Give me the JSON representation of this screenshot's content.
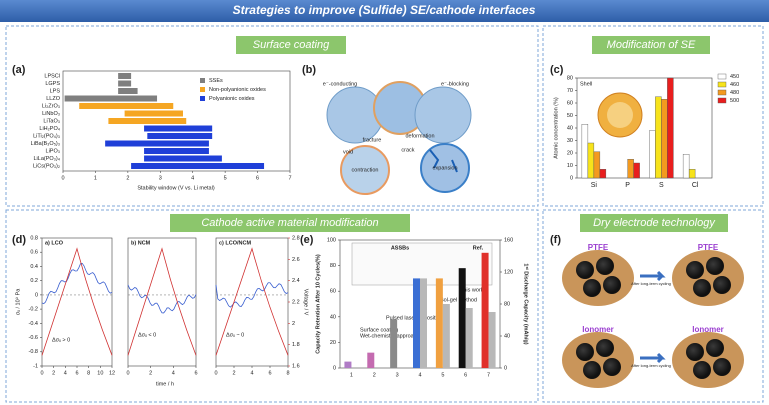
{
  "header": {
    "title": "Strategies to improve (Sulfide) SE/cathode interfaces"
  },
  "sections": {
    "surface_coating": "Surface coating",
    "modification_se": "Modification of SE",
    "cathode": "Cathode active material modification",
    "dry": "Dry electrode technology"
  },
  "panels": {
    "a": {
      "label": "(a)",
      "chart_data": {
        "type": "range-bar",
        "x_label": "Stability window (V vs. Li metal)",
        "categories": [
          "LPSCl",
          "LGPS",
          "LPS",
          "LLZO",
          "Li₂ZrO₃",
          "LiNbO₃",
          "LiTaO₃",
          "LiH₂PO₄",
          "LiTi₂(PO₄)₃",
          "LiBa(B₃O₅)₃",
          "LiPO₃",
          "LiLa(PO₃)₄",
          "LiCs(PO₃)₂"
        ],
        "xlim": [
          0,
          7
        ],
        "xticks": [
          0,
          1,
          2,
          3,
          4,
          5,
          6,
          7
        ],
        "series": [
          {
            "name": "SSEs",
            "color": "#7f7f7f",
            "ranges": [
              [
                1.7,
                2.1
              ],
              [
                1.7,
                2.1
              ],
              [
                1.7,
                2.3
              ],
              [
                0.05,
                2.9
              ],
              null,
              null,
              null,
              null,
              null,
              null,
              null,
              null,
              null
            ]
          },
          {
            "name": "Non-polyanionic oxides",
            "color": "#f5a623",
            "ranges": [
              null,
              null,
              null,
              null,
              [
                0.5,
                3.4
              ],
              [
                1.9,
                3.7
              ],
              [
                1.4,
                3.8
              ],
              null,
              null,
              null,
              null,
              null,
              null
            ]
          },
          {
            "name": "Polyanionic oxides",
            "color": "#1f3fd8",
            "ranges": [
              null,
              null,
              null,
              null,
              null,
              null,
              null,
              [
                2.5,
                4.6
              ],
              [
                2.6,
                4.6
              ],
              [
                1.3,
                4.5
              ],
              [
                2.5,
                4.5
              ],
              [
                2.5,
                4.9
              ],
              [
                2.1,
                6.2
              ]
            ]
          }
        ]
      }
    },
    "b": {
      "label": "(b)",
      "texts": [
        "e⁻-conducting",
        "e⁻-blocking",
        "fracture",
        "deformation",
        "void",
        "crack",
        "contraction",
        "expansion"
      ]
    },
    "c": {
      "label": "(c)",
      "shell": "Shell",
      "chart_data": {
        "type": "bar",
        "y_label": "Atomic concentration (%)",
        "categories": [
          "Si",
          "P",
          "S",
          "Cl"
        ],
        "ylim": [
          0,
          80
        ],
        "yticks": [
          0,
          10,
          20,
          30,
          40,
          50,
          60,
          70,
          80
        ],
        "series": [
          {
            "name": "450",
            "color": "#ffffff",
            "values": [
              43,
              null,
              38,
              19
            ]
          },
          {
            "name": "460",
            "color": "#f7e31b",
            "values": [
              28,
              null,
              65,
              7
            ]
          },
          {
            "name": "480",
            "color": "#f39a1f",
            "values": [
              21,
              15,
              63,
              null
            ]
          },
          {
            "name": "500",
            "color": "#e81e1e",
            "values": [
              7,
              12,
              80,
              null
            ]
          }
        ]
      }
    },
    "d": {
      "label": "(d)",
      "subtitles": [
        "a) LCO",
        "b) NCM",
        "c) LCO/NCM"
      ],
      "annotations": [
        "Δσₓ > 0",
        "Δσₓ < 0",
        "Δσₓ ~ 0"
      ],
      "chart_data": {
        "type": "line",
        "y_label": "σₓ / 10⁹ Pa",
        "y2_label": "Voltage / V",
        "x_label": "time / h",
        "ylim": [
          -1.0,
          0.8
        ],
        "yticks": [
          0.8,
          0.6,
          0.4,
          0.2,
          0,
          -0.2,
          -0.4,
          -0.6,
          -0.8,
          -1.0
        ],
        "y2lim": [
          1.6,
          2.8
        ],
        "y2ticks": [
          2.8,
          2.6,
          2.4,
          2.2,
          2.0,
          1.8,
          1.6
        ],
        "xticks": [
          [
            0,
            2,
            4,
            6,
            8,
            10,
            12
          ],
          [
            0,
            2,
            4,
            6
          ],
          [
            0,
            2,
            4,
            6,
            8
          ]
        ]
      }
    },
    "e": {
      "label": "(e)",
      "table_header": [
        "ASSBs",
        "Ref."
      ],
      "annotations": [
        "Surface coating",
        "Wet-chemistry approach",
        "Pulsed laser deposition",
        "Sol-gel method",
        "This work"
      ],
      "chart_data": {
        "type": "bar",
        "y_label": "Capacity Retention After 10 Cycles(%)",
        "y2_label": "1ˢᵗ Discharge Capacity (mAh/g)",
        "categories": [
          "1",
          "2",
          "3",
          "4",
          "5",
          "6",
          "7"
        ],
        "ylim": [
          0,
          100
        ],
        "yticks": [
          0,
          20,
          40,
          60,
          80,
          100
        ],
        "y2lim": [
          0,
          160
        ],
        "y2ticks": [
          0,
          40,
          80,
          120,
          160
        ],
        "series": [
          {
            "name": "Capacity Retention",
            "colors": [
              "#b07cc6",
              "#c46bb0",
              "#8a8a8a",
              "#3b6fd4",
              "#f0a040",
              "#111111",
              "#e0302a"
            ],
            "values": [
              5,
              12,
              38,
              70,
              70,
              78,
              90
            ]
          },
          {
            "name": "Discharge Capacity",
            "axis": "y2",
            "color": "#b8b8b8",
            "values": [
              null,
              null,
              null,
              112,
              80,
              75,
              70
            ]
          }
        ]
      }
    },
    "f": {
      "label": "(f)",
      "binders": [
        "PTFE",
        "Ionomer"
      ],
      "arrow_text": "After long-term cycling"
    }
  }
}
